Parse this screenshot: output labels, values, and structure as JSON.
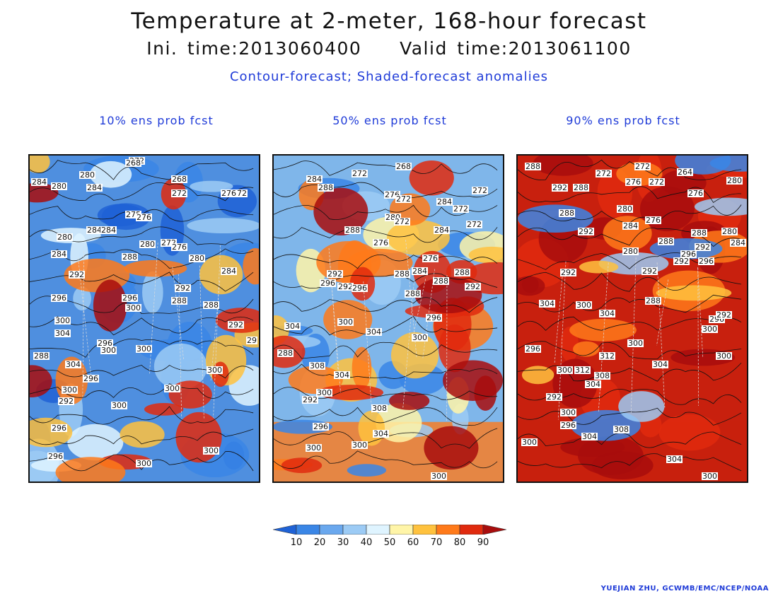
{
  "title": "Temperature at 2-meter, 168-hour forecast",
  "subtitle": "Ini. time:2013060400    Valid time:2013061100",
  "description": "Contour-forecast; Shaded-forecast anomalies",
  "panels": [
    {
      "title": "10% ens prob fcst",
      "base_color": "#4f8fdf",
      "labels": [
        "272",
        "268",
        "268",
        "284",
        "280",
        "280",
        "284",
        "272",
        "272",
        "276",
        "275",
        "276",
        "284",
        "284",
        "280",
        "272",
        "280",
        "276",
        "284",
        "288",
        "280",
        "284",
        "292",
        "292",
        "288",
        "288",
        "296",
        "296",
        "300",
        "300",
        "304",
        "300",
        "296",
        "288",
        "292",
        "304",
        "300",
        "296",
        "300",
        "292",
        "296",
        "300",
        "300",
        "300",
        "296",
        "300",
        "300",
        "29"
      ]
    },
    {
      "title": "50% ens prob fcst",
      "base_color": "#7fb6ea",
      "labels": [
        "272",
        "268",
        "284",
        "288",
        "276",
        "272",
        "284",
        "272",
        "272",
        "288",
        "280",
        "272",
        "284",
        "276",
        "276",
        "284",
        "272",
        "288",
        "288",
        "292",
        "288",
        "296",
        "292",
        "292",
        "296",
        "288",
        "304",
        "300",
        "304",
        "296",
        "300",
        "288",
        "308",
        "304",
        "300",
        "292",
        "308",
        "304",
        "296",
        "300",
        "300",
        "300"
      ]
    },
    {
      "title": "90% ens prob fcst",
      "base_color": "#c8200e",
      "labels": [
        "288",
        "272",
        "272",
        "264",
        "280",
        "292",
        "288",
        "276",
        "272",
        "276",
        "288",
        "292",
        "280",
        "284",
        "276",
        "288",
        "280",
        "292",
        "288",
        "280",
        "292",
        "296",
        "292",
        "296",
        "284",
        "292",
        "288",
        "304",
        "300",
        "304",
        "300",
        "296",
        "292",
        "300",
        "296",
        "300",
        "312",
        "304",
        "300",
        "312",
        "308",
        "304",
        "292",
        "300",
        "296",
        "308",
        "304",
        "304",
        "300",
        "300"
      ]
    }
  ],
  "legend": {
    "ticks": [
      "10",
      "20",
      "30",
      "40",
      "50",
      "60",
      "70",
      "80",
      "90"
    ],
    "colors": [
      "#1f62d6",
      "#3a86e6",
      "#6aa8ee",
      "#9ccbf5",
      "#dff4ff",
      "#fff5a8",
      "#ffc23e",
      "#ff7a1a",
      "#e02a0e",
      "#a80d0d",
      "#a80d0d"
    ]
  },
  "credit": "YUEJIAN ZHU, GCWMB/EMC/NCEP/NOAA"
}
